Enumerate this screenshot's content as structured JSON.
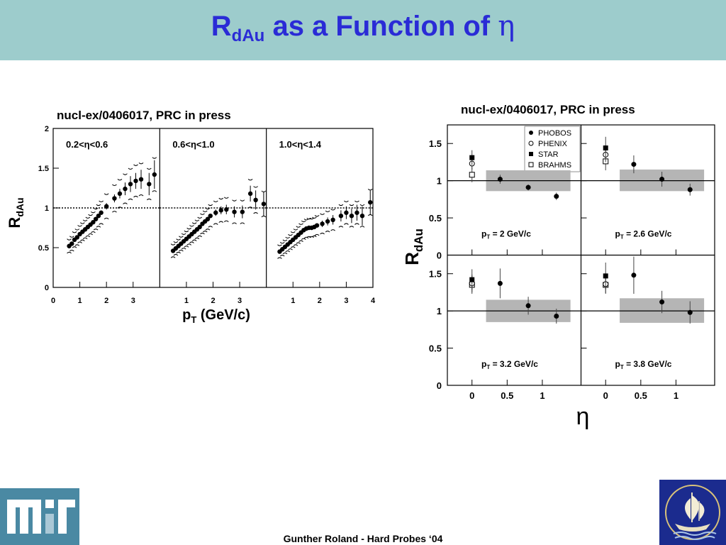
{
  "slide": {
    "title_main": "R",
    "title_sub": "dAu",
    "title_rest": " as a Function of ",
    "title_eta": "η",
    "footer": "Gunther Roland - Hard Probes ‘04"
  },
  "left_figure": {
    "reference": "nucl-ex/0406017, PRC in press"
  },
  "right_figure": {
    "reference": "nucl-ex/0406017, PRC in press"
  },
  "logos": {
    "left": "mit-logo",
    "right": "hard-probes-ship-logo"
  },
  "chart_data": [
    {
      "type": "scatter",
      "ylabel_main": "R",
      "ylabel_sub": "dAu",
      "xlabel_main": "p",
      "xlabel_sub": "T",
      "xlabel_rest": " (GeV/c)",
      "ylim": [
        0,
        2
      ],
      "yticks": [
        "0",
        "0.5",
        "1",
        "1.5",
        "2"
      ],
      "reference_line": 1,
      "panels": [
        {
          "label": "0.2<η<0.6",
          "xlim": [
            0,
            4
          ],
          "xticks": [
            "0",
            "1",
            "2",
            "3"
          ],
          "x": [
            0.6,
            0.7,
            0.8,
            0.9,
            1.0,
            1.1,
            1.2,
            1.3,
            1.4,
            1.5,
            1.6,
            1.7,
            1.8,
            2.0,
            2.3,
            2.5,
            2.7,
            2.9,
            3.1,
            3.3,
            3.6,
            3.8
          ],
          "y": [
            0.52,
            0.55,
            0.6,
            0.63,
            0.67,
            0.7,
            0.73,
            0.76,
            0.79,
            0.82,
            0.86,
            0.9,
            0.94,
            1.02,
            1.12,
            1.18,
            1.24,
            1.3,
            1.34,
            1.36,
            1.3,
            1.42
          ],
          "err": [
            0.02,
            0.02,
            0.02,
            0.02,
            0.02,
            0.02,
            0.02,
            0.02,
            0.02,
            0.03,
            0.03,
            0.03,
            0.03,
            0.04,
            0.05,
            0.06,
            0.08,
            0.1,
            0.1,
            0.12,
            0.14,
            0.18
          ]
        },
        {
          "label": "0.6<η<1.0",
          "xlim": [
            0,
            4
          ],
          "xticks": [
            "1",
            "2",
            "3"
          ],
          "x": [
            0.5,
            0.6,
            0.7,
            0.8,
            0.9,
            1.0,
            1.1,
            1.2,
            1.3,
            1.4,
            1.5,
            1.6,
            1.7,
            1.8,
            1.9,
            2.1,
            2.3,
            2.5,
            2.8,
            3.1,
            3.4,
            3.6,
            3.9
          ],
          "y": [
            0.46,
            0.49,
            0.52,
            0.55,
            0.58,
            0.61,
            0.64,
            0.67,
            0.7,
            0.73,
            0.76,
            0.8,
            0.83,
            0.86,
            0.9,
            0.94,
            0.97,
            0.98,
            0.95,
            0.95,
            1.18,
            1.1,
            1.05
          ],
          "err": [
            0.02,
            0.02,
            0.02,
            0.02,
            0.02,
            0.02,
            0.02,
            0.02,
            0.02,
            0.02,
            0.02,
            0.03,
            0.03,
            0.03,
            0.03,
            0.04,
            0.05,
            0.06,
            0.07,
            0.08,
            0.1,
            0.12,
            0.15
          ]
        },
        {
          "label": "1.0<η<1.4",
          "xlim": [
            0,
            4
          ],
          "xticks": [
            "1",
            "2",
            "3",
            "4"
          ],
          "x": [
            0.5,
            0.6,
            0.7,
            0.8,
            0.9,
            1.0,
            1.1,
            1.2,
            1.3,
            1.4,
            1.5,
            1.6,
            1.7,
            1.8,
            1.9,
            2.1,
            2.3,
            2.5,
            2.8,
            3.0,
            3.2,
            3.4,
            3.6,
            3.9
          ],
          "y": [
            0.45,
            0.48,
            0.51,
            0.54,
            0.57,
            0.6,
            0.63,
            0.66,
            0.69,
            0.72,
            0.74,
            0.75,
            0.75,
            0.76,
            0.78,
            0.8,
            0.83,
            0.85,
            0.9,
            0.94,
            0.9,
            0.94,
            0.9,
            1.07
          ],
          "err": [
            0.02,
            0.02,
            0.02,
            0.02,
            0.02,
            0.02,
            0.02,
            0.02,
            0.02,
            0.02,
            0.02,
            0.03,
            0.03,
            0.03,
            0.03,
            0.04,
            0.05,
            0.06,
            0.07,
            0.08,
            0.09,
            0.1,
            0.12,
            0.15
          ]
        }
      ]
    },
    {
      "type": "scatter",
      "ylabel_main": "R",
      "ylabel_sub": "dAu",
      "xlabel": "η",
      "ylim": [
        0,
        1.75
      ],
      "yticks": [
        "0",
        "0.5",
        "1",
        "1.5"
      ],
      "xlim": [
        -0.35,
        1.55
      ],
      "xticks": [
        "0",
        "0.5",
        "1"
      ],
      "reference_line": 1,
      "legend": [
        "PHOBOS",
        "PHENIX",
        "STAR",
        "BRAHMS"
      ],
      "panels": [
        {
          "label": "p_T = 2 GeV/c",
          "band": {
            "x": [
              0.2,
              1.4
            ],
            "y": [
              0.86,
              1.14
            ]
          },
          "phobos": {
            "x": [
              0.4,
              0.8,
              1.2
            ],
            "y": [
              1.02,
              0.91,
              0.79
            ],
            "err": [
              0.06,
              0.04,
              0.05
            ]
          },
          "phenix": {
            "x": [
              0
            ],
            "y": [
              1.23
            ],
            "err": [
              0.08
            ]
          },
          "star": {
            "x": [
              0
            ],
            "y": [
              1.31
            ],
            "err": [
              0.1
            ]
          },
          "brahms": {
            "x": [
              0
            ],
            "y": [
              1.08
            ],
            "err": [
              0.1
            ]
          }
        },
        {
          "label": "p_T = 2.6 GeV/c",
          "band": {
            "x": [
              0.2,
              1.4
            ],
            "y": [
              0.86,
              1.15
            ]
          },
          "phobos": {
            "x": [
              0.4,
              0.8,
              1.2
            ],
            "y": [
              1.22,
              1.02,
              0.88
            ],
            "err": [
              0.12,
              0.1,
              0.08
            ]
          },
          "phenix": {
            "x": [
              0
            ],
            "y": [
              1.35
            ],
            "err": [
              0.1
            ]
          },
          "star": {
            "x": [
              0
            ],
            "y": [
              1.44
            ],
            "err": [
              0.15
            ]
          },
          "brahms": {
            "x": [
              0
            ],
            "y": [
              1.26
            ],
            "err": [
              0.12
            ]
          }
        },
        {
          "label": "p_T = 3.2 GeV/c",
          "band": {
            "x": [
              0.2,
              1.4
            ],
            "y": [
              0.85,
              1.15
            ]
          },
          "phobos": {
            "x": [
              0.4,
              0.8,
              1.2
            ],
            "y": [
              1.37,
              1.07,
              0.93
            ],
            "err": [
              0.2,
              0.12,
              0.1
            ]
          },
          "phenix": {
            "x": [
              0
            ],
            "y": [
              1.37
            ],
            "err": [
              0.12
            ]
          },
          "star": {
            "x": [
              0
            ],
            "y": [
              1.42
            ],
            "err": [
              0.14
            ]
          },
          "brahms": {
            "x": [
              0
            ],
            "y": [
              1.35
            ],
            "err": [
              0.12
            ]
          }
        },
        {
          "label": "p_T = 3.8 GeV/c",
          "band": {
            "x": [
              0.2,
              1.4
            ],
            "y": [
              0.84,
              1.17
            ]
          },
          "phobos": {
            "x": [
              0.4,
              0.8,
              1.2
            ],
            "y": [
              1.48,
              1.12,
              0.98
            ],
            "err": [
              0.25,
              0.15,
              0.15
            ]
          },
          "phenix": {
            "x": [
              0
            ],
            "y": [
              1.36
            ],
            "err": [
              0.12
            ]
          },
          "star": {
            "x": [
              0
            ],
            "y": [
              1.47
            ],
            "err": [
              0.18
            ]
          },
          "brahms": {
            "x": [
              0
            ],
            "y": [
              1.35
            ],
            "err": [
              0.12
            ]
          }
        }
      ]
    }
  ]
}
